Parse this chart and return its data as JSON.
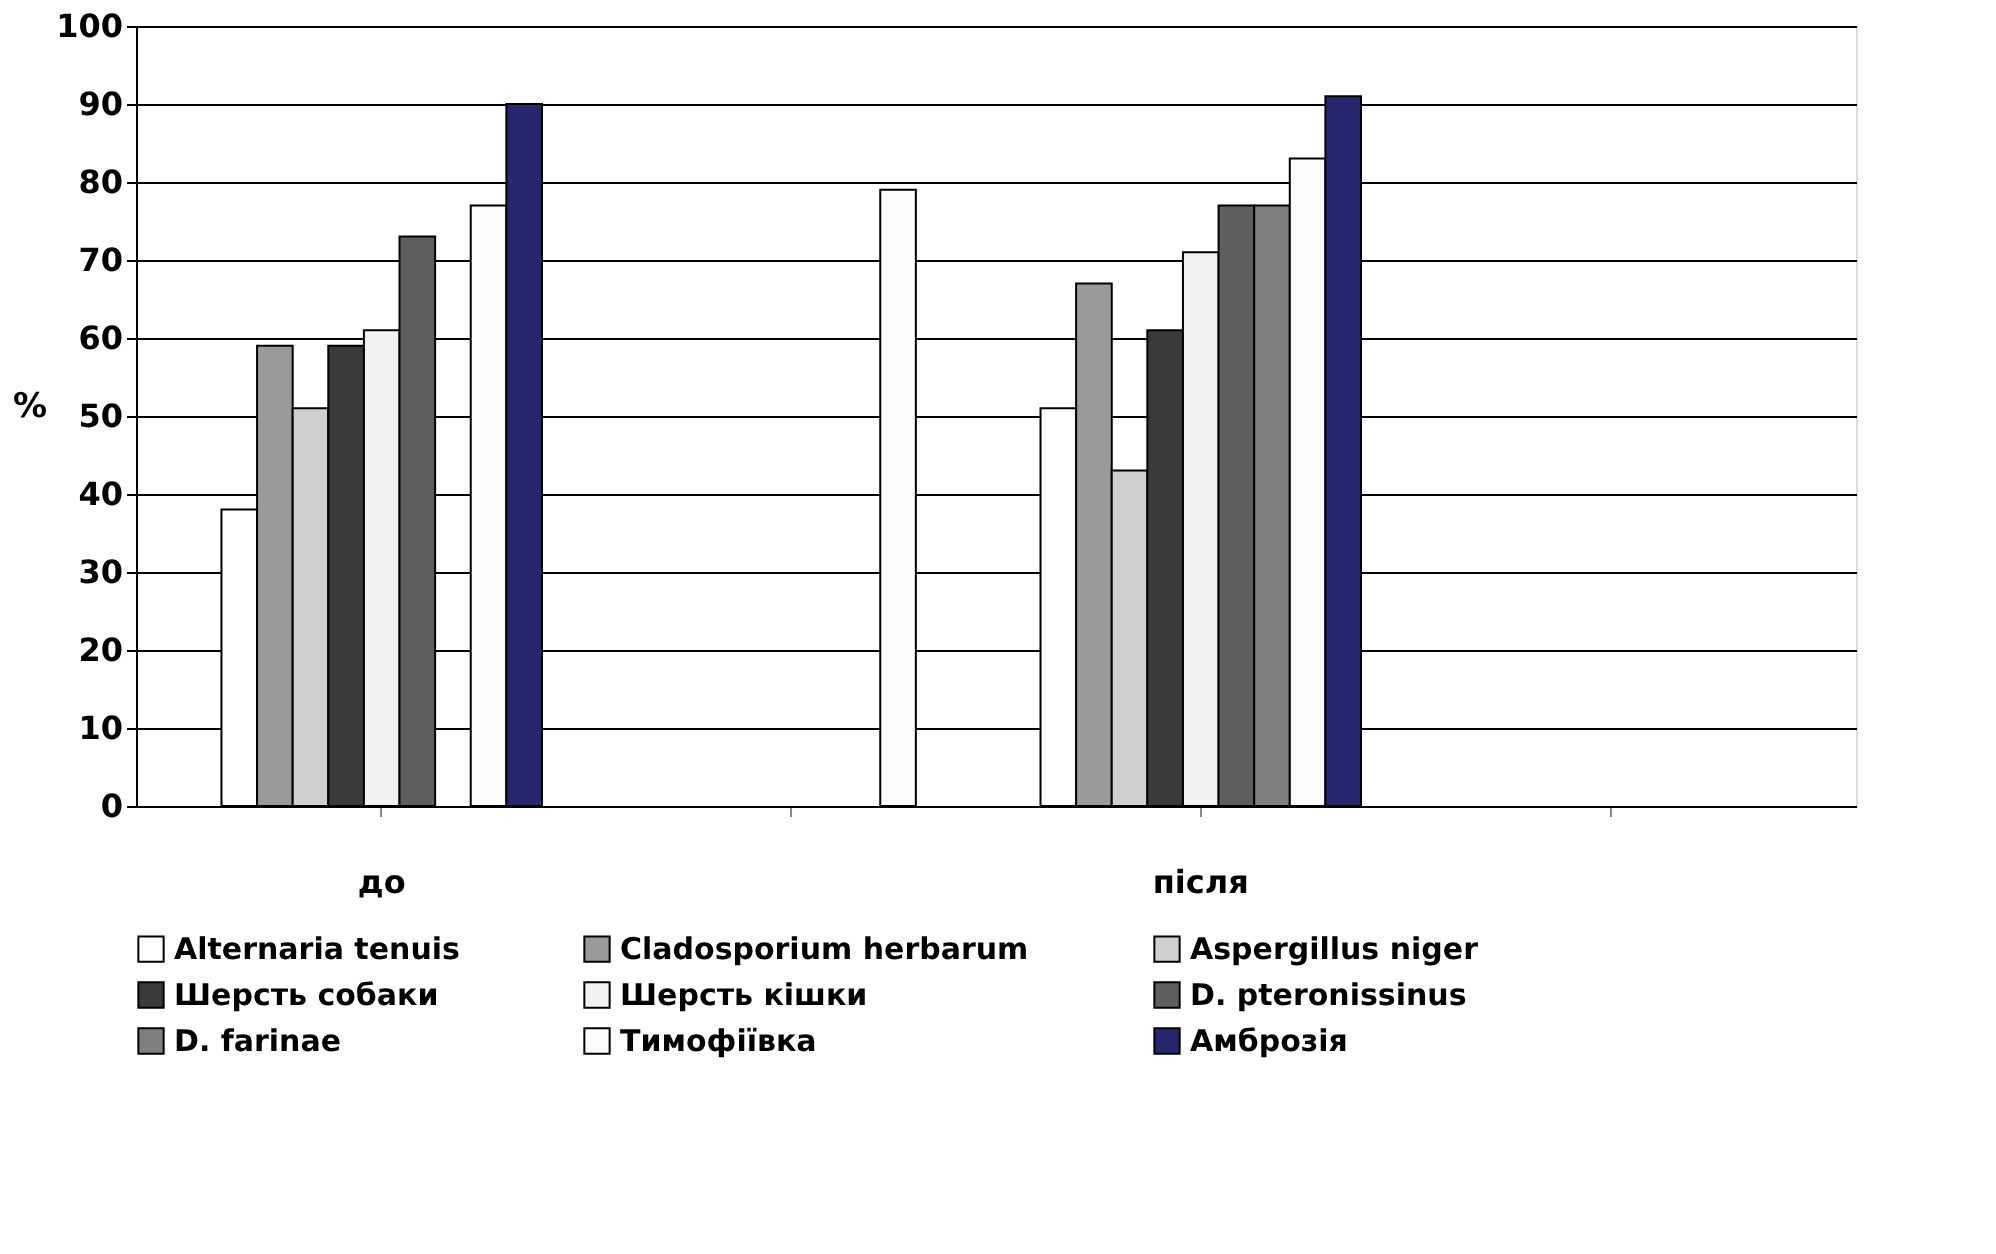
{
  "chart_data": {
    "type": "bar",
    "ylabel": "%",
    "categories": [
      "до",
      null,
      "після",
      null
    ],
    "series": [
      {
        "name": "Alternaria tenuis",
        "color": "#ffffff",
        "values": [
          38,
          0,
          51,
          0
        ]
      },
      {
        "name": "Cladosporium herbarum",
        "color": "#9a9a9a",
        "values": [
          59,
          0,
          67,
          0
        ]
      },
      {
        "name": "Aspergillus niger",
        "color": "#cfcfcf",
        "values": [
          51,
          0,
          43,
          0
        ]
      },
      {
        "name": "Шерсть собаки",
        "color": "#3a3a3a",
        "values": [
          59,
          0,
          61,
          0
        ]
      },
      {
        "name": "Шерсть кішки",
        "color": "#f2f2f2",
        "values": [
          61,
          0,
          71,
          0
        ]
      },
      {
        "name": "D. pteronissinus",
        "color": "#5e5e5e",
        "values": [
          73,
          0,
          77,
          0
        ]
      },
      {
        "name": "D. farinae",
        "color": "#7f7f7f",
        "values": [
          0,
          0,
          77,
          0
        ]
      },
      {
        "name": "Тимофіївка",
        "color": "#fbfbfb",
        "values": [
          77,
          79,
          83,
          0
        ]
      },
      {
        "name": "Амброзія",
        "color": "#27276f",
        "values": [
          90,
          0,
          91,
          0
        ]
      }
    ],
    "ylim": [
      0,
      100
    ],
    "yticks": [
      0,
      10,
      20,
      30,
      40,
      50,
      60,
      70,
      80,
      90,
      100
    ],
    "grid": "y",
    "legend": "bottom"
  }
}
